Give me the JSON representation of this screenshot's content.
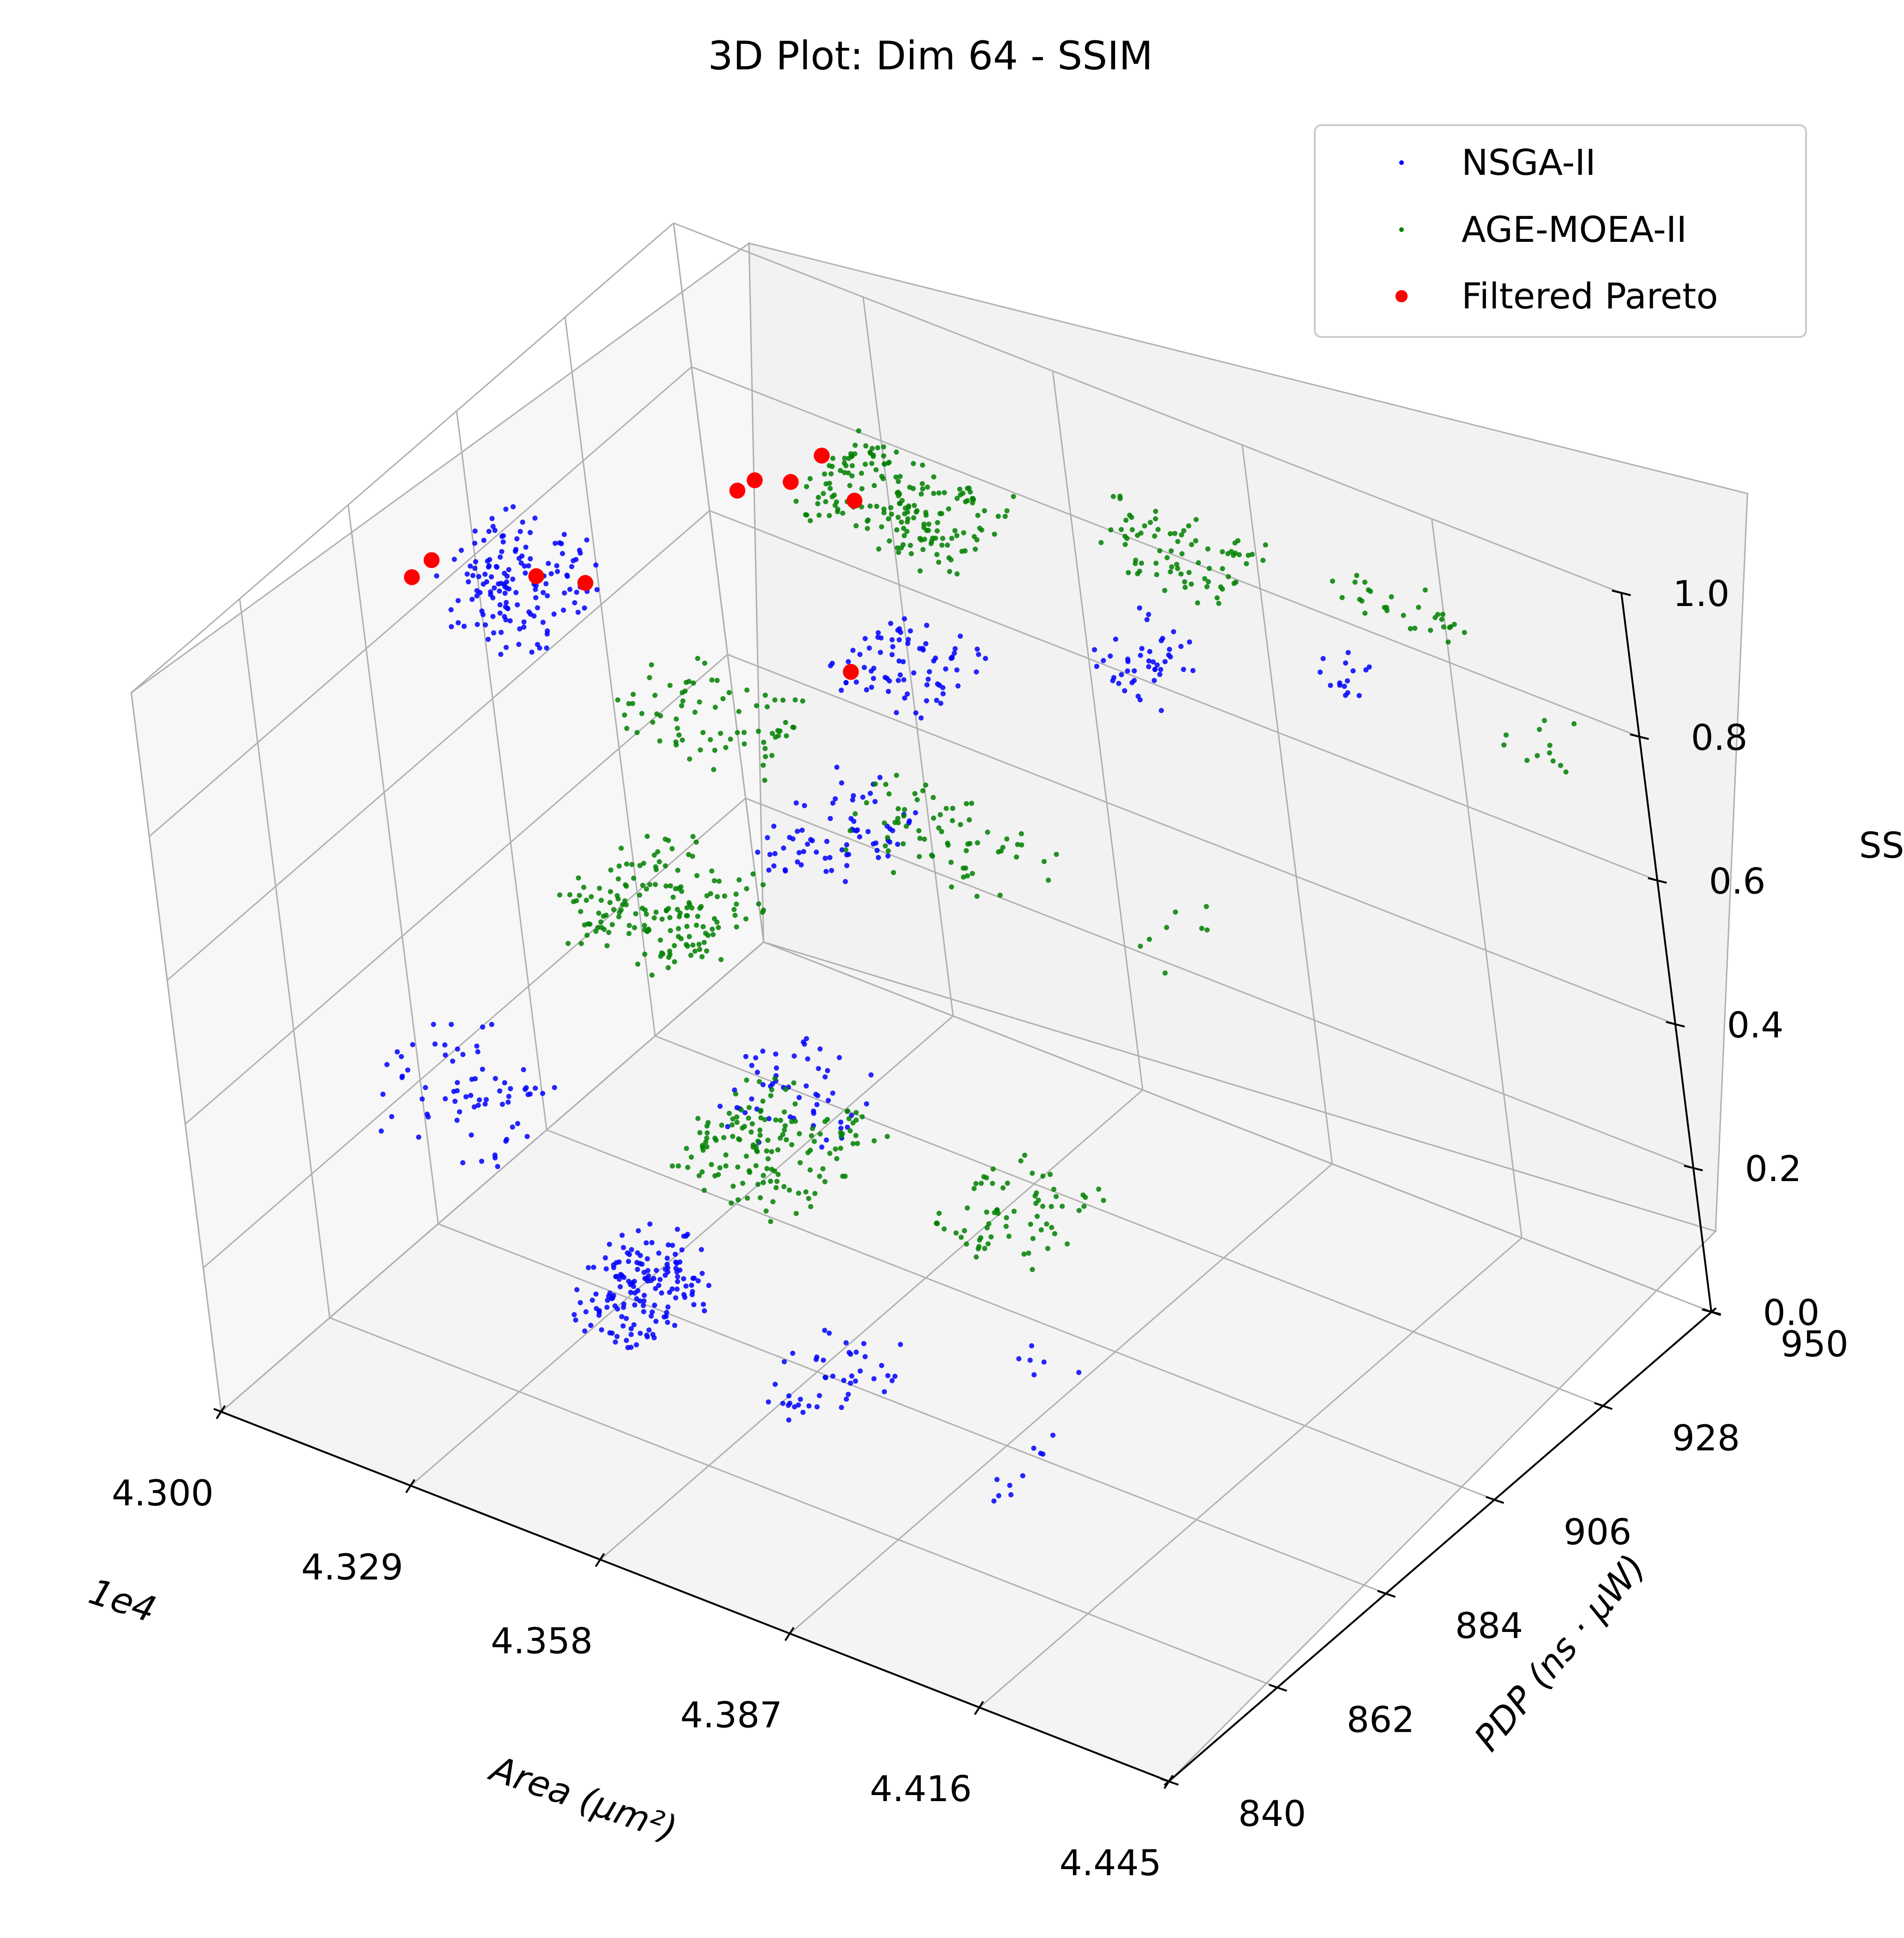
{
  "chart_data": {
    "type": "scatter",
    "projection": "3d",
    "title": "3D Plot: Dim 64 - SSIM",
    "xlabel": "Area (μm²)",
    "ylabel": "PDP (ns · μW)",
    "zlabel": "SSIM",
    "x_offset_label": "1e4",
    "xlim": [
      4.3,
      4.445
    ],
    "ylim": [
      840,
      950
    ],
    "zlim": [
      0.0,
      1.0
    ],
    "x_ticks": [
      "4.300",
      "4.329",
      "4.358",
      "4.387",
      "4.416",
      "4.445"
    ],
    "y_ticks": [
      "840",
      "862",
      "884",
      "906",
      "928",
      "950"
    ],
    "z_ticks": [
      "0.0",
      "0.2",
      "0.4",
      "0.6",
      "0.8",
      "1.0"
    ],
    "grid": true,
    "legend_position": "top-right",
    "series": [
      {
        "name": "NSGA-II",
        "color": "#0000ff",
        "marker": "small-dot",
        "clusters": [
          {
            "x": [
              4.316,
              4.331
            ],
            "y": [
              930,
              948
            ],
            "z": [
              0.26,
              0.33
            ],
            "count": 70
          },
          {
            "x": [
              4.304,
              4.324
            ],
            "y": [
              868,
              886
            ],
            "z": [
              0.24,
              0.31
            ],
            "count": 70
          },
          {
            "x": [
              4.343,
              4.36
            ],
            "y": [
              885,
              903
            ],
            "z": [
              0.27,
              0.33
            ],
            "count": 55
          },
          {
            "x": [
              4.356,
              4.368
            ],
            "y": [
              840,
              858
            ],
            "z": [
              0.3,
              0.38
            ],
            "count": 160
          },
          {
            "x": [
              4.385,
              4.397
            ],
            "y": [
              840,
              856
            ],
            "z": [
              0.29,
              0.35
            ],
            "count": 45
          },
          {
            "x": [
              4.421,
              4.425
            ],
            "y": [
              840,
              852
            ],
            "z": [
              0.29,
              0.34
            ],
            "count": 10
          },
          {
            "x": [
              4.405,
              4.415
            ],
            "y": [
              861,
              869
            ],
            "z": [
              0.29,
              0.31
            ],
            "count": 6
          },
          {
            "x": [
              4.3,
              4.315
            ],
            "y": [
              897,
              912
            ],
            "z": [
              0.74,
              0.85
            ],
            "count": 150
          },
          {
            "x": [
              4.35,
              4.365
            ],
            "y": [
              909,
              925
            ],
            "z": [
              0.77,
              0.8
            ],
            "count": 80
          },
          {
            "x": [
              4.372,
              4.38
            ],
            "y": [
              935,
              945
            ],
            "z": [
              0.68,
              0.76
            ],
            "count": 45
          },
          {
            "x": [
              4.398,
              4.405
            ],
            "y": [
              945,
              950
            ],
            "z": [
              0.72,
              0.76
            ],
            "count": 15
          }
        ]
      },
      {
        "name": "AGE-MOEA-II",
        "color": "#008000",
        "marker": "small-dot",
        "clusters": [
          {
            "x": [
              4.305,
              4.325
            ],
            "y": [
              906,
              926
            ],
            "z": [
              0.27,
              0.34
            ],
            "count": 170
          },
          {
            "x": [
              4.345,
              4.365
            ],
            "y": [
              875,
              895
            ],
            "z": [
              0.27,
              0.32
            ],
            "count": 150
          },
          {
            "x": [
              4.382,
              4.398
            ],
            "y": [
              880,
              897
            ],
            "z": [
              0.29,
              0.33
            ],
            "count": 70
          },
          {
            "x": [
              4.32,
              4.345
            ],
            "y": [
              903,
              915
            ],
            "z": [
              0.64,
              0.7
            ],
            "count": 75
          },
          {
            "x": [
              4.355,
              4.38
            ],
            "y": [
              903,
              915
            ],
            "z": [
              0.59,
              0.65
            ],
            "count": 70
          },
          {
            "x": [
              4.385,
              4.395
            ],
            "y": [
              913,
              928
            ],
            "z": [
              0.48,
              0.54
            ],
            "count": 8
          },
          {
            "x": [
              4.34,
              4.365
            ],
            "y": [
              919,
              933
            ],
            "z": [
              0.91,
              0.96
            ],
            "count": 190
          },
          {
            "x": [
              4.372,
              4.395
            ],
            "y": [
              934,
              944
            ],
            "z": [
              0.88,
              0.93
            ],
            "count": 80
          },
          {
            "x": [
              4.402,
              4.42
            ],
            "y": [
              945,
              950
            ],
            "z": [
              0.85,
              0.9
            ],
            "count": 30
          },
          {
            "x": [
              4.425,
              4.436
            ],
            "y": [
              945,
              950
            ],
            "z": [
              0.73,
              0.8
            ],
            "count": 12
          }
        ]
      },
      {
        "name": "Filtered Pareto",
        "color": "#ff0000",
        "marker": "large-dot",
        "points": [
          {
            "x": 4.3,
            "y": 898,
            "z": 0.84
          },
          {
            "x": 4.3,
            "y": 894,
            "z": 0.84
          },
          {
            "x": 4.313,
            "y": 902,
            "z": 0.84
          },
          {
            "x": 4.319,
            "y": 904,
            "z": 0.84
          },
          {
            "x": 4.336,
            "y": 918,
            "z": 0.96
          },
          {
            "x": 4.34,
            "y": 920,
            "z": 0.96
          },
          {
            "x": 4.342,
            "y": 924,
            "z": 0.98
          },
          {
            "x": 4.349,
            "y": 921,
            "z": 0.96
          },
          {
            "x": 4.333,
            "y": 918,
            "z": 0.935
          },
          {
            "x": 4.352,
            "y": 913,
            "z": 0.78
          }
        ]
      }
    ]
  }
}
